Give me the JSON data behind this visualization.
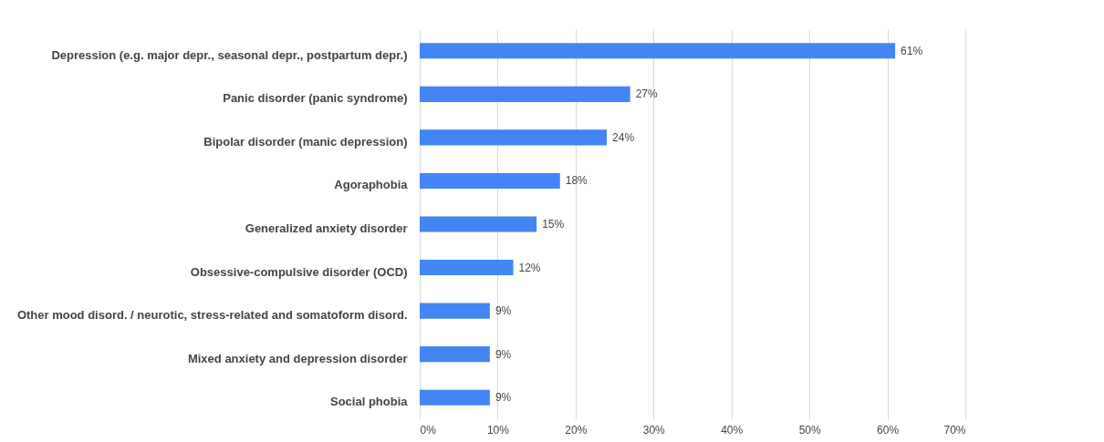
{
  "chart_data": {
    "type": "bar",
    "orientation": "horizontal",
    "categories": [
      "Depression (e.g. major depr., seasonal depr., postpartum depr.)",
      "Panic disorder (panic syndrome)",
      "Bipolar disorder (manic depression)",
      "Agoraphobia",
      "Generalized anxiety disorder",
      "Obsessive-compulsive disorder (OCD)",
      "Other mood disord. / neurotic, stress-related and somatoform disord.",
      "Mixed anxiety and depression disorder",
      "Social phobia"
    ],
    "values": [
      61,
      27,
      24,
      18,
      15,
      12,
      9,
      9,
      9
    ],
    "value_labels": [
      "61%",
      "27%",
      "24%",
      "18%",
      "15%",
      "12%",
      "9%",
      "9%",
      "9%"
    ],
    "color": "#4285f4",
    "xlim": [
      0,
      70
    ],
    "xticks": [
      {
        "value": 0,
        "label": "0%"
      },
      {
        "value": 10,
        "label": "10%"
      },
      {
        "value": 20,
        "label": "20%"
      },
      {
        "value": 30,
        "label": "30%"
      },
      {
        "value": 40,
        "label": "40%"
      },
      {
        "value": 50,
        "label": "50%"
      },
      {
        "value": 60,
        "label": "60%"
      },
      {
        "value": 70,
        "label": "70%"
      }
    ],
    "grid": "x"
  }
}
